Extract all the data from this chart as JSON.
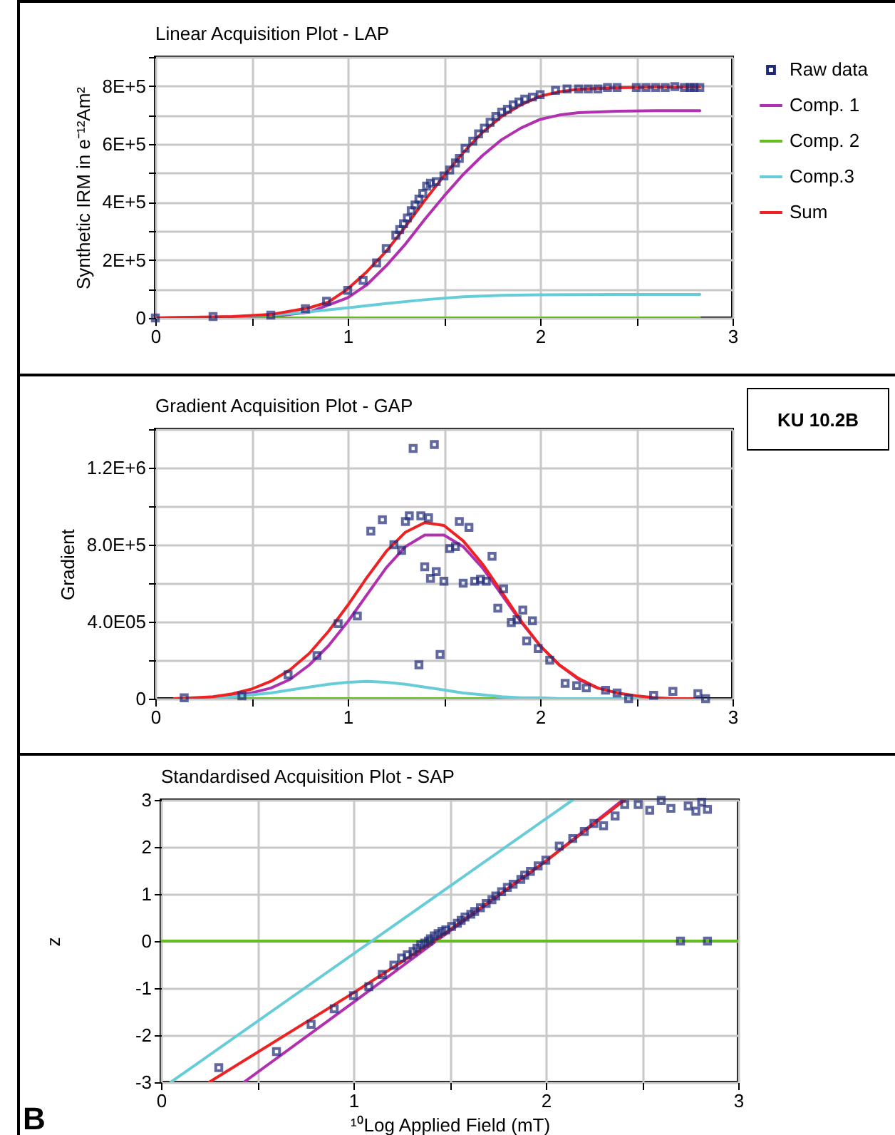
{
  "chart_data": [
    {
      "type": "line",
      "title": "Linear Acquisition Plot - LAP",
      "ylabel": "Synthetic IRM in e⁻¹²Am²",
      "xlim": [
        0,
        3
      ],
      "ylim": [
        0,
        900000
      ],
      "xticks": [
        0,
        {
          "value": 0.5,
          "label": null
        },
        1,
        {
          "value": 1.5,
          "label": null
        },
        2,
        {
          "value": 2.5,
          "label": null
        },
        3
      ],
      "yticks": [
        0,
        {
          "value": 100000,
          "label": null
        },
        {
          "value": 200000,
          "label": "2E+5"
        },
        {
          "value": 300000,
          "label": null
        },
        {
          "value": 400000,
          "label": "4E+5"
        },
        {
          "value": 500000,
          "label": null
        },
        {
          "value": 600000,
          "label": "6E+5"
        },
        {
          "value": 700000,
          "label": null
        },
        {
          "value": 800000,
          "label": "8E+5"
        },
        {
          "value": 900000,
          "label": null
        }
      ],
      "grid": true,
      "legend": "right",
      "series": [
        {
          "name": "Raw data",
          "type": "scatter",
          "marker": "square",
          "color": "#1f2a78",
          "x": [
            0,
            0.3,
            0.6,
            0.78,
            0.89,
            1.0,
            1.08,
            1.15,
            1.2,
            1.25,
            1.27,
            1.29,
            1.31,
            1.33,
            1.35,
            1.37,
            1.39,
            1.41,
            1.43,
            1.46,
            1.5,
            1.53,
            1.56,
            1.58,
            1.61,
            1.65,
            1.68,
            1.71,
            1.74,
            1.77,
            1.8,
            1.83,
            1.86,
            1.89,
            1.92,
            1.96,
            2.0,
            2.08,
            2.14,
            2.2,
            2.25,
            2.3,
            2.35,
            2.4,
            2.5,
            2.55,
            2.6,
            2.65,
            2.7,
            2.75,
            2.78,
            2.8,
            2.83
          ],
          "values": [
            0,
            5000,
            10000,
            32000,
            58000,
            95000,
            130000,
            190000,
            240000,
            285000,
            305000,
            325000,
            345000,
            370000,
            390000,
            410000,
            430000,
            455000,
            465000,
            470000,
            490000,
            510000,
            535000,
            550000,
            585000,
            610000,
            635000,
            655000,
            675000,
            695000,
            710000,
            720000,
            735000,
            745000,
            755000,
            762000,
            770000,
            785000,
            790000,
            790000,
            790000,
            790000,
            795000,
            795000,
            795000,
            795000,
            795000,
            795000,
            798000,
            795000,
            795000,
            795000,
            795000
          ]
        },
        {
          "name": "Comp. 1",
          "color": "#b030b0",
          "x": [
            0,
            0.6,
            0.8,
            1.0,
            1.1,
            1.2,
            1.3,
            1.4,
            1.5,
            1.6,
            1.7,
            1.8,
            1.9,
            2.0,
            2.1,
            2.2,
            2.4,
            2.6,
            2.83
          ],
          "values": [
            0,
            5000,
            20000,
            70000,
            115000,
            180000,
            255000,
            340000,
            420000,
            495000,
            560000,
            615000,
            655000,
            685000,
            700000,
            708000,
            713000,
            715000,
            715000
          ]
        },
        {
          "name": "Comp. 2",
          "color": "#66bb22",
          "x": [
            0,
            2.83
          ],
          "values": [
            0,
            0
          ]
        },
        {
          "name": "Comp.3",
          "color": "#66ccd8",
          "x": [
            0,
            0.4,
            0.7,
            0.9,
            1.0,
            1.2,
            1.4,
            1.6,
            1.8,
            2.0,
            2.4,
            2.83
          ],
          "values": [
            0,
            3000,
            15000,
            28000,
            35000,
            50000,
            63000,
            73000,
            78000,
            80000,
            81000,
            81000
          ]
        },
        {
          "name": "Sum",
          "color": "#ee2222",
          "x": [
            0,
            0.4,
            0.6,
            0.8,
            0.9,
            1.0,
            1.1,
            1.2,
            1.3,
            1.4,
            1.5,
            1.6,
            1.7,
            1.8,
            1.9,
            2.0,
            2.1,
            2.2,
            2.4,
            2.6,
            2.83
          ],
          "values": [
            0,
            5000,
            12000,
            35000,
            55000,
            100000,
            160000,
            230000,
            315000,
            405000,
            490000,
            570000,
            640000,
            695000,
            735000,
            765000,
            780000,
            789000,
            794000,
            796000,
            796000
          ]
        }
      ]
    },
    {
      "type": "line",
      "title": "Gradient Acquisition Plot - GAP",
      "ylabel": "Gradient",
      "annotations": [
        "KU 10.2B"
      ],
      "xlim": [
        0,
        3
      ],
      "ylim": [
        0,
        1400000
      ],
      "xticks": [
        0,
        {
          "value": 0.5,
          "label": null
        },
        1,
        {
          "value": 1.5,
          "label": null
        },
        2,
        {
          "value": 2.5,
          "label": null
        },
        3
      ],
      "yticks": [
        0,
        {
          "value": 200000,
          "label": null
        },
        {
          "value": 400000,
          "label": "4.0E05"
        },
        {
          "value": 600000,
          "label": null
        },
        {
          "value": 800000,
          "label": "8.0E+5"
        },
        {
          "value": 1000000,
          "label": null
        },
        {
          "value": 1200000,
          "label": "1.2E+6"
        },
        {
          "value": 1400000,
          "label": null
        }
      ],
      "grid": true,
      "series": [
        {
          "type": "scatter",
          "marker": "square",
          "color": "#1f2a78",
          "x": [
            0.15,
            0.45,
            0.69,
            0.84,
            0.95,
            1.05,
            1.12,
            1.18,
            1.24,
            1.28,
            1.3,
            1.32,
            1.34,
            1.37,
            1.38,
            1.4,
            1.42,
            1.43,
            1.45,
            1.46,
            1.48,
            1.5,
            1.53,
            1.56,
            1.58,
            1.6,
            1.63,
            1.66,
            1.69,
            1.72,
            1.75,
            1.78,
            1.81,
            1.85,
            1.88,
            1.91,
            1.93,
            1.96,
            1.99,
            2.05,
            2.13,
            2.19,
            2.24,
            2.34,
            2.4,
            2.46,
            2.59,
            2.69,
            2.82,
            2.86
          ],
          "values": [
            5000,
            15000,
            124000,
            224000,
            390000,
            430000,
            870000,
            930000,
            800000,
            770000,
            920000,
            950000,
            1300000,
            176000,
            950000,
            685000,
            940000,
            625000,
            1320000,
            660000,
            230000,
            610000,
            780000,
            790000,
            920000,
            600000,
            890000,
            610000,
            620000,
            610000,
            740000,
            470000,
            570000,
            395000,
            410000,
            460000,
            300000,
            405000,
            260000,
            200000,
            80000,
            68000,
            56000,
            44000,
            30000,
            0,
            18000,
            38000,
            26000,
            0
          ]
        },
        {
          "color": "#b030b0",
          "x": [
            0.3,
            0.4,
            0.5,
            0.6,
            0.7,
            0.8,
            0.9,
            1.0,
            1.1,
            1.2,
            1.3,
            1.4,
            1.5,
            1.6,
            1.7,
            1.8,
            1.9,
            2.0,
            2.1,
            2.2,
            2.3
          ],
          "values": [
            5000,
            15000,
            30000,
            55000,
            100000,
            175000,
            275000,
            400000,
            540000,
            680000,
            790000,
            850000,
            850000,
            790000,
            680000,
            540000,
            400000,
            275000,
            175000,
            100000,
            55000
          ]
        },
        {
          "color": "#66bb22",
          "x": [
            0.1,
            2.8
          ],
          "values": [
            0,
            0
          ]
        },
        {
          "color": "#66ccd8",
          "x": [
            0.1,
            0.2,
            0.3,
            0.4,
            0.5,
            0.6,
            0.7,
            0.8,
            0.9,
            1.0,
            1.1,
            1.2,
            1.3,
            1.4,
            1.5,
            1.6,
            1.7,
            1.8,
            1.9,
            2.0,
            2.1,
            2.2,
            2.3,
            2.4,
            2.8
          ],
          "values": [
            0,
            5000,
            5000,
            10000,
            20000,
            30000,
            45000,
            60000,
            75000,
            85000,
            90000,
            85000,
            75000,
            60000,
            45000,
            30000,
            20000,
            10000,
            5000,
            5000,
            0,
            0,
            0,
            0,
            0
          ]
        },
        {
          "color": "#ee2222",
          "x": [
            0.1,
            0.2,
            0.3,
            0.4,
            0.5,
            0.6,
            0.7,
            0.8,
            0.9,
            1.0,
            1.1,
            1.2,
            1.3,
            1.4,
            1.5,
            1.6,
            1.7,
            1.8,
            1.9,
            2.0,
            2.1,
            2.2,
            2.3,
            2.4,
            2.5,
            2.6,
            2.7,
            2.8
          ],
          "values": [
            0,
            5000,
            10000,
            25000,
            50000,
            90000,
            150000,
            235000,
            350000,
            485000,
            630000,
            765000,
            865000,
            915000,
            900000,
            820000,
            700000,
            555000,
            405000,
            275000,
            175000,
            105000,
            55000,
            30000,
            15000,
            5000,
            0,
            0
          ]
        }
      ]
    },
    {
      "type": "line",
      "title": "Standardised Acquisition Plot - SAP",
      "xlabel": "¹⁰Log Applied Field (mT)",
      "ylabel": "z",
      "annotations": [
        "B"
      ],
      "xlim": [
        0,
        3
      ],
      "ylim": [
        -3,
        3
      ],
      "xticks": [
        0,
        {
          "value": 0.5,
          "label": null
        },
        1,
        {
          "value": 1.5,
          "label": null
        },
        2,
        {
          "value": 2.5,
          "label": null
        },
        3
      ],
      "yticks": [
        -3,
        -2,
        -1,
        0,
        1,
        2,
        3
      ],
      "grid": true,
      "series": [
        {
          "type": "scatter",
          "marker": "square",
          "color": "#1f2a78",
          "x": [
            0.3,
            0.6,
            0.78,
            0.9,
            1.0,
            1.08,
            1.15,
            1.21,
            1.25,
            1.28,
            1.31,
            1.33,
            1.35,
            1.37,
            1.39,
            1.4,
            1.42,
            1.44,
            1.46,
            1.48,
            1.51,
            1.54,
            1.56,
            1.58,
            1.61,
            1.63,
            1.66,
            1.69,
            1.72,
            1.74,
            1.77,
            1.8,
            1.83,
            1.87,
            1.89,
            1.92,
            1.96,
            2.0,
            2.07,
            2.14,
            2.2,
            2.25,
            2.3,
            2.36,
            2.41,
            2.48,
            2.54,
            2.6,
            2.65,
            2.74,
            2.78,
            2.81,
            2.84,
            2.7,
            2.84
          ],
          "values": [
            -2.69,
            -2.35,
            -1.77,
            -1.44,
            -1.16,
            -0.97,
            -0.71,
            -0.51,
            -0.36,
            -0.29,
            -0.22,
            -0.15,
            -0.08,
            -0.04,
            0,
            0.05,
            0.11,
            0.16,
            0.21,
            0.24,
            0.31,
            0.38,
            0.44,
            0.51,
            0.57,
            0.63,
            0.71,
            0.8,
            0.88,
            0.96,
            1.05,
            1.14,
            1.21,
            1.31,
            1.4,
            1.48,
            1.6,
            1.72,
            2.02,
            2.18,
            2.33,
            2.5,
            2.45,
            2.66,
            2.9,
            2.9,
            2.78,
            2.99,
            2.82,
            2.87,
            2.76,
            2.95,
            2.8,
            0,
            0
          ]
        },
        {
          "color": "#b030b0",
          "x": [
            0.43,
            1.0,
            1.43,
            2.0,
            2.4
          ],
          "values": [
            -3,
            -1.3,
            0,
            1.7,
            3
          ]
        },
        {
          "color": "#66bb22",
          "x": [
            0,
            3
          ],
          "values": [
            0,
            0
          ]
        },
        {
          "color": "#66ccd8",
          "x": [
            0.05,
            2.14
          ],
          "values": [
            -3,
            3
          ]
        },
        {
          "color": "#ee2222",
          "x": [
            0.25,
            1.0,
            1.42,
            2.0,
            2.41
          ],
          "values": [
            -3,
            -1.1,
            0,
            1.7,
            3
          ]
        }
      ]
    }
  ]
}
